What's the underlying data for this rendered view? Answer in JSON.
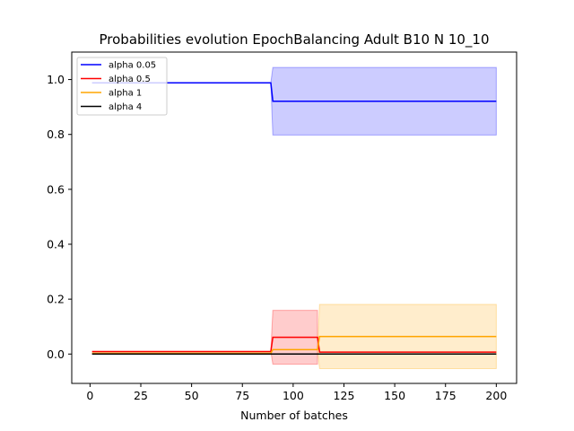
{
  "chart_data": {
    "type": "line",
    "title": "Probabilities evolution EpochBalancing Adult B10 N 10_10",
    "xlabel": "Number of batches",
    "ylabel": "",
    "xlim": [
      -9,
      210
    ],
    "ylim": [
      -0.107,
      1.1
    ],
    "xticks": [
      0,
      25,
      50,
      75,
      100,
      125,
      150,
      175,
      200
    ],
    "yticks": [
      0.0,
      0.2,
      0.4,
      0.6,
      0.8,
      1.0
    ],
    "xtick_labels": [
      "0",
      "25",
      "50",
      "75",
      "100",
      "125",
      "150",
      "175",
      "200"
    ],
    "ytick_labels": [
      "0.0",
      "0.2",
      "0.4",
      "0.6",
      "0.8",
      "1.0"
    ],
    "grid": false,
    "legend_position": "top-left",
    "series": [
      {
        "name": "alpha 0.05",
        "color": "#0000ff",
        "x": [
          1,
          89,
          90,
          200
        ],
        "y": [
          0.988,
          0.988,
          0.921,
          0.921
        ],
        "band": {
          "x": [
            89,
            90,
            200
          ],
          "lower": [
            0.988,
            0.798,
            0.798
          ],
          "upper": [
            0.988,
            1.044,
            1.044
          ]
        }
      },
      {
        "name": "alpha 0.5",
        "color": "#ff0000",
        "x": [
          1,
          89,
          90,
          112,
          113,
          200
        ],
        "y": [
          0.009,
          0.009,
          0.061,
          0.061,
          0.007,
          0.007
        ],
        "band": {
          "x": [
            89,
            90,
            112
          ],
          "lower": [
            0.009,
            -0.037,
            -0.037
          ],
          "upper": [
            0.009,
            0.159,
            0.159
          ]
        }
      },
      {
        "name": "alpha 1",
        "color": "#ffa500",
        "x": [
          1,
          89,
          90,
          112,
          113,
          200
        ],
        "y": [
          0.003,
          0.003,
          0.016,
          0.016,
          0.064,
          0.064
        ],
        "band": {
          "x": [
            112,
            113,
            200
          ],
          "lower": [
            0.016,
            -0.053,
            -0.053
          ],
          "upper": [
            0.016,
            0.181,
            0.181
          ]
        }
      },
      {
        "name": "alpha 4",
        "color": "#000000",
        "x": [
          1,
          200
        ],
        "y": [
          0.0,
          0.0
        ],
        "band": null
      }
    ]
  }
}
